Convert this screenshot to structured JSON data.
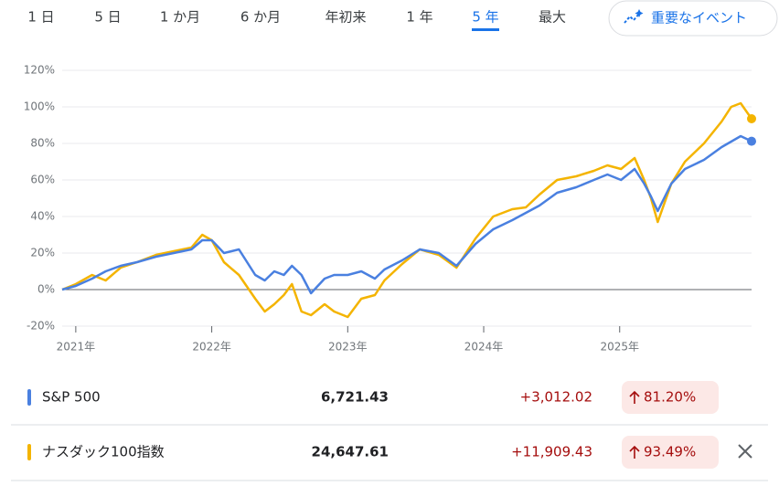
{
  "tabs": [
    "1 日",
    "5 日",
    "1 か月",
    "6 か月",
    "年初来",
    "1 年",
    "5 年",
    "最大"
  ],
  "selected_tab": 6,
  "events_button": "重要なイベント",
  "chart_data": {
    "type": "line",
    "x": [
      2020.9,
      2021.0,
      2021.12,
      2021.22,
      2021.33,
      2021.45,
      2021.59,
      2021.72,
      2021.85,
      2021.93,
      2022.0,
      2022.09,
      2022.2,
      2022.32,
      2022.39,
      2022.46,
      2022.53,
      2022.59,
      2022.66,
      2022.73,
      2022.83,
      2022.9,
      2023.0,
      2023.1,
      2023.2,
      2023.27,
      2023.4,
      2023.53,
      2023.67,
      2023.8,
      2023.94,
      2024.07,
      2024.21,
      2024.31,
      2024.41,
      2024.54,
      2024.68,
      2024.81,
      2024.91,
      2025.01,
      2025.11,
      2025.18,
      2025.23,
      2025.28,
      2025.38,
      2025.48,
      2025.62,
      2025.75,
      2025.82,
      2025.89,
      2025.97
    ],
    "series": [
      {
        "name": "S&P 500",
        "color": "#4a80e0",
        "values": [
          0,
          2,
          6,
          10,
          13,
          15,
          18,
          20,
          22,
          27,
          27,
          20,
          22,
          8,
          5,
          10,
          8,
          13,
          8,
          -2,
          6,
          8,
          8,
          10,
          6,
          11,
          16,
          22,
          20,
          13,
          25,
          33,
          38,
          42,
          46,
          53,
          56,
          60,
          63,
          60,
          66,
          58,
          51,
          43,
          58,
          66,
          71,
          78,
          81,
          84,
          81.2
        ]
      },
      {
        "name": "ナスダック100指数",
        "color": "#f4b400",
        "values": [
          0,
          3,
          8,
          5,
          12,
          15,
          19,
          21,
          23,
          30,
          27,
          15,
          8,
          -5,
          -12,
          -8,
          -3,
          3,
          -12,
          -14,
          -8,
          -12,
          -15,
          -5,
          -3,
          5,
          14,
          22,
          19,
          12,
          28,
          40,
          44,
          45,
          52,
          60,
          62,
          65,
          68,
          66,
          72,
          60,
          50,
          37,
          58,
          70,
          80,
          92,
          100,
          102,
          93.49
        ]
      }
    ],
    "xlim": [
      2020.9,
      2025.97
    ],
    "xticks": [
      {
        "value": 2021,
        "label": "2021年"
      },
      {
        "value": 2022,
        "label": "2022年"
      },
      {
        "value": 2023,
        "label": "2023年"
      },
      {
        "value": 2024,
        "label": "2024年"
      },
      {
        "value": 2025,
        "label": "2025年"
      }
    ],
    "ylim": [
      -20,
      120
    ],
    "yticks": [
      {
        "value": -20,
        "label": "-20%"
      },
      {
        "value": 0,
        "label": "0%"
      },
      {
        "value": 20,
        "label": "20%"
      },
      {
        "value": 40,
        "label": "40%"
      },
      {
        "value": 60,
        "label": "60%"
      },
      {
        "value": 80,
        "label": "80%"
      },
      {
        "value": 100,
        "label": "100%"
      },
      {
        "value": 120,
        "label": "120%"
      }
    ],
    "grid": true
  },
  "legend_table": {
    "rows": [
      {
        "price": "6,721.43",
        "change": "+3,012.02",
        "percent": "81.20%"
      },
      {
        "price": "24,647.61",
        "change": "+11,909.43",
        "percent": "93.49%"
      }
    ]
  }
}
